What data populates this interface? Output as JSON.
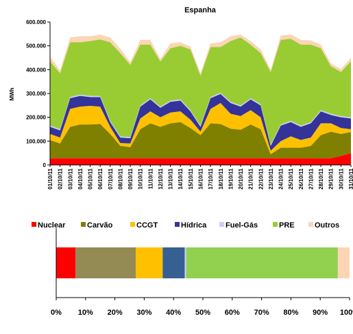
{
  "chart_data": [
    {
      "type": "area",
      "stacked": true,
      "title": "Espanha",
      "y_label": "MWh",
      "categories": [
        "01/10/11",
        "02/10/11",
        "03/10/11",
        "04/10/11",
        "05/10/11",
        "06/10/11",
        "07/10/11",
        "08/10/11",
        "09/10/11",
        "10/10/11",
        "11/10/11",
        "12/10/11",
        "13/10/11",
        "14/10/11",
        "15/10/11",
        "16/10/11",
        "17/10/11",
        "18/10/11",
        "19/10/11",
        "20/10/11",
        "21/10/11",
        "22/10/11",
        "23/10/11",
        "24/10/11",
        "25/10/11",
        "26/10/11",
        "27/10/11",
        "28/10/11",
        "29/10/11",
        "30/10/11",
        "31/10/11"
      ],
      "series": [
        {
          "name": "Nuclear",
          "color": "#ff0000",
          "values": [
            28000,
            28000,
            28000,
            28000,
            28000,
            28000,
            28000,
            28000,
            28000,
            28000,
            28000,
            28000,
            28000,
            28000,
            28000,
            28000,
            28000,
            28000,
            28000,
            28000,
            28000,
            28000,
            28000,
            28000,
            28000,
            28000,
            28000,
            28000,
            28000,
            38000,
            50000
          ]
        },
        {
          "name": "Carvão",
          "color": "#808000",
          "values": [
            77000,
            62000,
            132000,
            142000,
            142000,
            144000,
            102000,
            52000,
            47000,
            122000,
            147000,
            132000,
            147000,
            152000,
            127000,
            97000,
            147000,
            144000,
            124000,
            120000,
            142000,
            122000,
            17000,
            44000,
            44000,
            44000,
            52000,
            97000,
            112000,
            92000,
            88000
          ]
        },
        {
          "name": "CCGT",
          "color": "#ffc000",
          "values": [
            25000,
            25000,
            75000,
            75000,
            78000,
            73000,
            30000,
            12000,
            15000,
            45000,
            50000,
            40000,
            45000,
            45000,
            35000,
            15000,
            60000,
            88000,
            63000,
            57000,
            60000,
            50000,
            15000,
            28000,
            48000,
            33000,
            35000,
            50000,
            35000,
            25000,
            12000
          ]
        },
        {
          "name": "Hídrica",
          "color": "#333399",
          "values": [
            30000,
            30000,
            45000,
            45000,
            37000,
            40000,
            20000,
            23000,
            22000,
            50000,
            50000,
            40000,
            45000,
            45000,
            35000,
            20000,
            45000,
            38000,
            45000,
            40000,
            45000,
            50000,
            20000,
            65000,
            60000,
            55000,
            60000,
            50000,
            35000,
            45000,
            45000
          ]
        },
        {
          "name": "Fuel-Gás",
          "color": "#ccccff",
          "values": [
            5000,
            5000,
            5000,
            5000,
            5000,
            5000,
            5000,
            5000,
            5000,
            5000,
            5000,
            5000,
            5000,
            5000,
            5000,
            5000,
            5000,
            5000,
            5000,
            5000,
            5000,
            5000,
            5000,
            5000,
            5000,
            5000,
            5000,
            5000,
            5000,
            5000,
            5000
          ]
        },
        {
          "name": "PRE",
          "color": "#99cc33",
          "values": [
            270000,
            235000,
            230000,
            220000,
            230000,
            237000,
            330000,
            350000,
            303000,
            255000,
            225000,
            190000,
            220000,
            225000,
            255000,
            210000,
            210000,
            192000,
            255000,
            285000,
            225000,
            215000,
            305000,
            355000,
            345000,
            340000,
            325000,
            260000,
            200000,
            185000,
            235000
          ]
        },
        {
          "name": "Outros",
          "color": "#fcd5b5",
          "values": [
            20000,
            12000,
            20000,
            25000,
            20000,
            20000,
            20000,
            18000,
            12000,
            20000,
            20000,
            10000,
            20000,
            15000,
            12000,
            10000,
            15000,
            20000,
            20000,
            12000,
            15000,
            15000,
            10000,
            18000,
            18000,
            20000,
            18000,
            15000,
            12000,
            12000,
            15000
          ]
        }
      ],
      "ylim": [
        0,
        600000
      ],
      "yticks": [
        0,
        {
          "value": 100000,
          "label": "100.000"
        },
        {
          "value": 200000,
          "label": "200.000"
        },
        {
          "value": 300000,
          "label": "300.000"
        },
        {
          "value": 400000,
          "label": "400.000"
        },
        {
          "value": 500000,
          "label": "500.000"
        },
        {
          "value": 600000,
          "label": "600.000"
        }
      ],
      "grid": false,
      "legend": "bottom"
    },
    {
      "type": "bar",
      "orientation": "horizontal",
      "stacked": true,
      "values": [
        6.6,
        20.5,
        9.2,
        7.5,
        0.5,
        51.7,
        4
      ],
      "colors": [
        "#ff0000",
        "#948a54",
        "#ffc000",
        "#366092",
        "#ccccff",
        "#92d050",
        "#fcd5b5"
      ],
      "xlim": [
        0,
        100
      ],
      "xticks": [
        {
          "value": 0,
          "label": "0%"
        },
        {
          "value": 10,
          "label": "10%"
        },
        {
          "value": 20,
          "label": "20%"
        },
        {
          "value": 30,
          "label": "30%"
        },
        {
          "value": 40,
          "label": "40%"
        },
        {
          "value": 50,
          "label": "50%"
        },
        {
          "value": 60,
          "label": "60%"
        },
        {
          "value": 70,
          "label": "70%"
        },
        {
          "value": 80,
          "label": "80%"
        },
        {
          "value": 90,
          "label": "90%"
        },
        {
          "value": 100,
          "label": "100%"
        }
      ]
    }
  ]
}
